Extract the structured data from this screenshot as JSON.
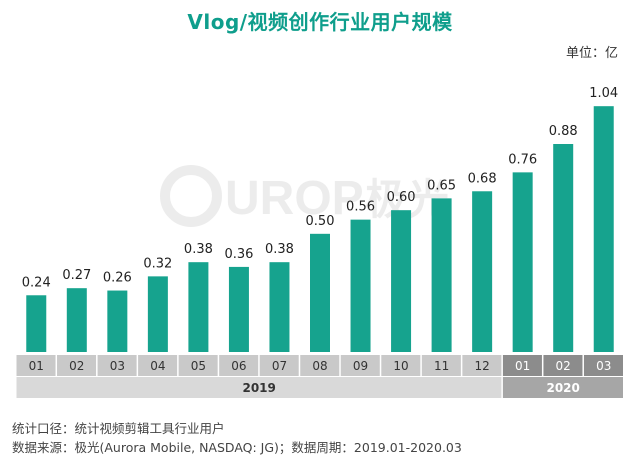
{
  "watermark_text": "UROP",
  "watermark_text_2": "极光",
  "chart_data": {
    "type": "bar",
    "title": "Vlog/视频创作行业用户规模",
    "unit_label": "单位：亿",
    "categories": [
      "01",
      "02",
      "03",
      "04",
      "05",
      "06",
      "07",
      "08",
      "09",
      "10",
      "11",
      "12",
      "01",
      "02",
      "03"
    ],
    "values": [
      0.24,
      0.27,
      0.26,
      0.32,
      0.38,
      0.36,
      0.38,
      0.5,
      0.56,
      0.6,
      0.65,
      0.68,
      0.76,
      0.88,
      1.04
    ],
    "value_labels": [
      "0.24",
      "0.27",
      "0.26",
      "0.32",
      "0.38",
      "0.36",
      "0.38",
      "0.50",
      "0.56",
      "0.60",
      "0.65",
      "0.68",
      "0.76",
      "0.88",
      "1.04"
    ],
    "year_groups": [
      {
        "label": "2019",
        "count": 12
      },
      {
        "label": "2020",
        "count": 3
      }
    ],
    "ylim": [
      0,
      1.1
    ],
    "grid": false,
    "bar_color": "#16a38e",
    "month_band_color_2019": "#c9c9c9",
    "year_band_color_2019": "#d9d9d9",
    "month_band_color_2020": "#8c8c8c",
    "year_band_color_2020": "#a6a6a6"
  },
  "footnotes": {
    "line1": "统计口径：统计视频剪辑工具行业用户",
    "line2": "数据来源：极光(Aurora Mobile, NASDAQ: JG)；数据周期：2019.01-2020.03"
  }
}
